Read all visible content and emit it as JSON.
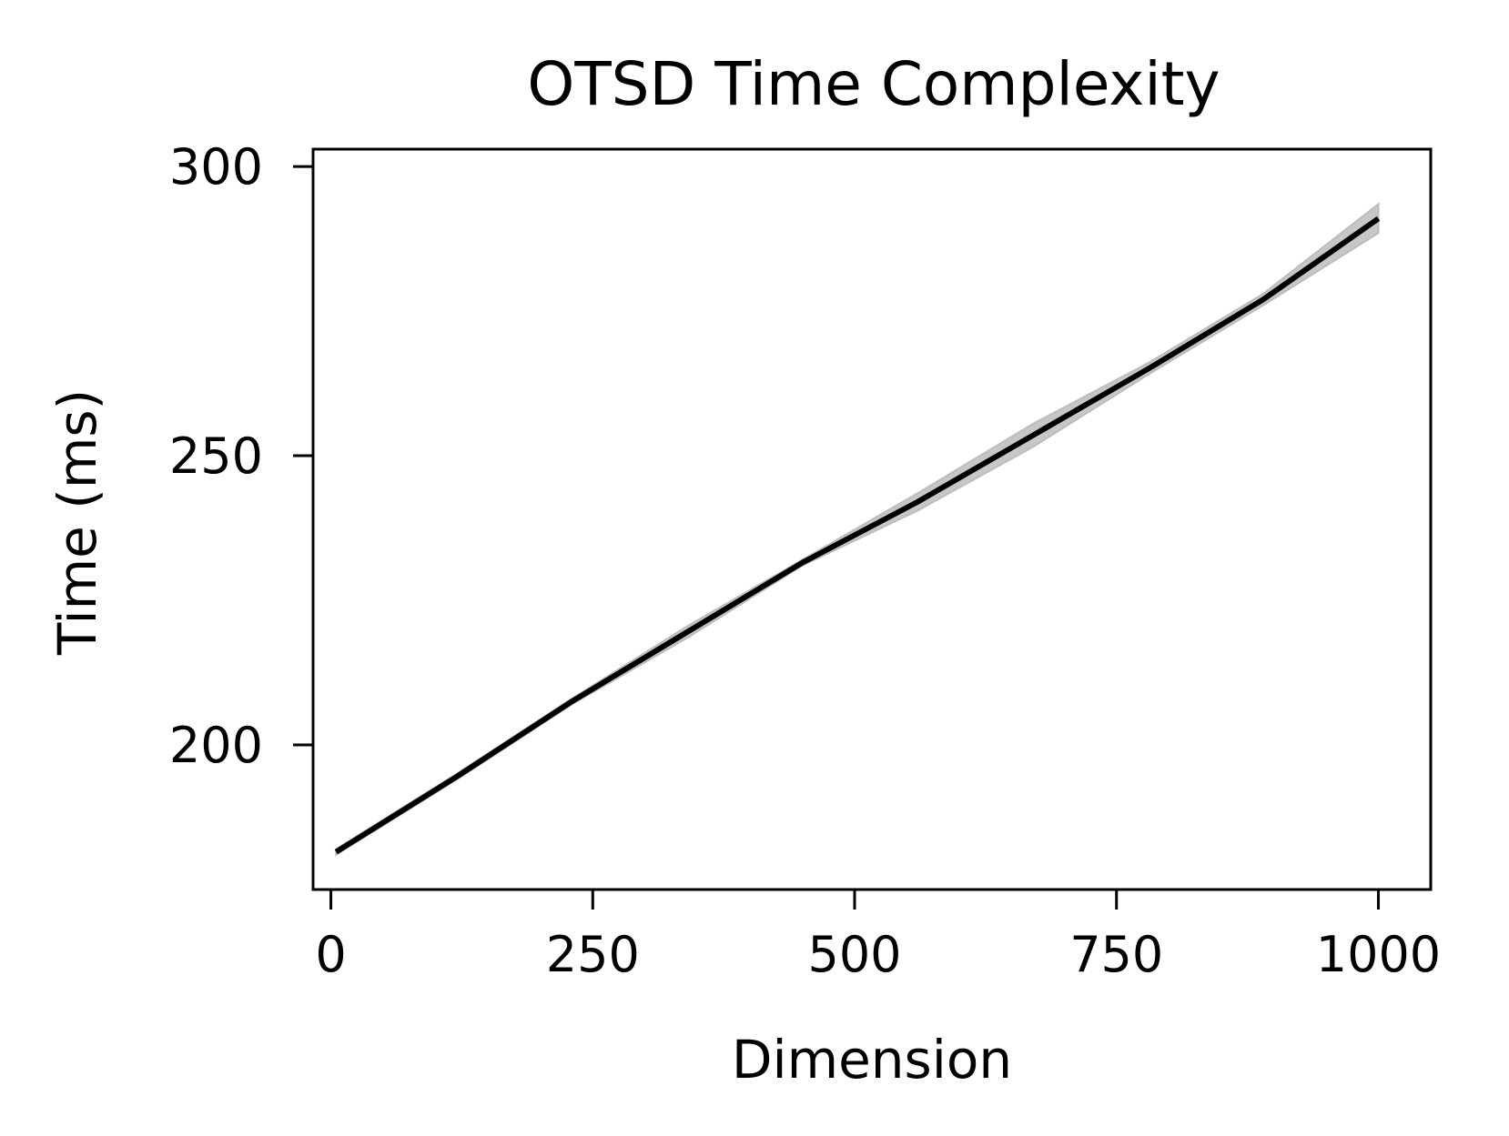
{
  "chart_data": {
    "type": "line",
    "title": "OTSD Time Complexity",
    "xlabel": "Dimension",
    "ylabel": "Time (ms)",
    "xlim": [
      -17,
      1050
    ],
    "ylim": [
      175,
      303
    ],
    "xticks": [
      0,
      250,
      500,
      750,
      1000
    ],
    "yticks": [
      200,
      250,
      300
    ],
    "x_tick_labels": [
      "0",
      "250",
      "500",
      "750",
      "1000"
    ],
    "y_tick_labels": [
      "200",
      "250",
      "300"
    ],
    "grid": false,
    "legend": "none",
    "series": [
      {
        "x": [
          5,
          120,
          230,
          340,
          450,
          560,
          670,
          780,
          890,
          1000
        ],
        "y": [
          181.5,
          194.5,
          207.5,
          219.5,
          231.5,
          242.0,
          253.5,
          265.0,
          277.0,
          291.0
        ],
        "band_lower": [
          181.0,
          194.0,
          207.0,
          218.5,
          231.0,
          240.5,
          251.5,
          264.0,
          276.0,
          288.5
        ],
        "band_upper": [
          182.0,
          195.0,
          208.0,
          220.5,
          232.0,
          243.5,
          255.5,
          266.0,
          278.0,
          293.5
        ],
        "color": "#000000",
        "band_color": "#bdbdbd"
      }
    ]
  }
}
